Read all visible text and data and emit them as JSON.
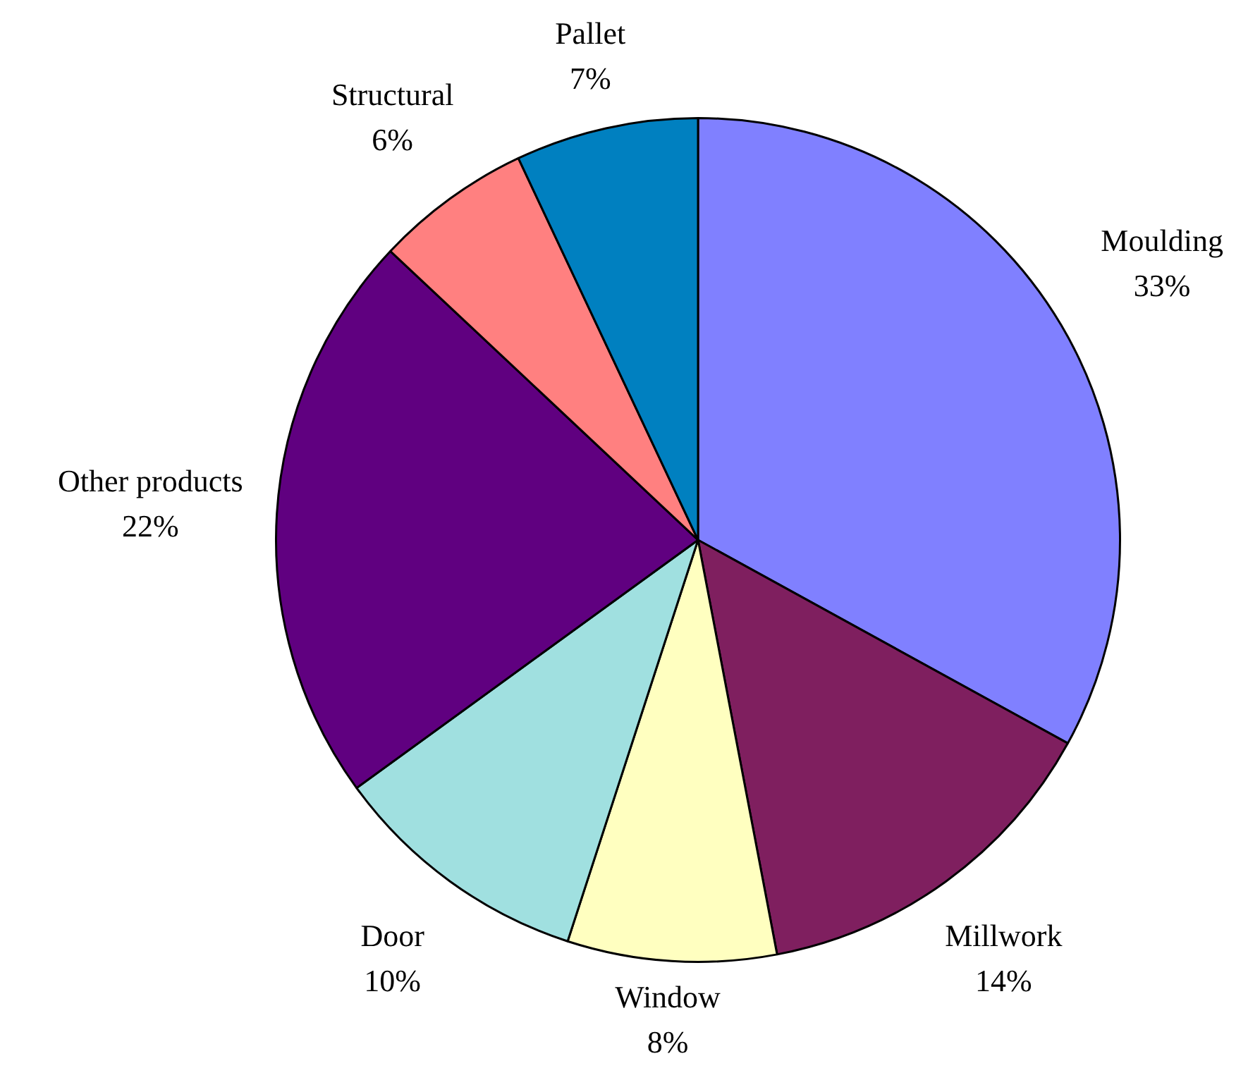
{
  "chart_data": {
    "type": "pie",
    "categories": [
      "Moulding",
      "Millwork",
      "Window",
      "Door",
      "Other products",
      "Structural",
      "Pallet"
    ],
    "values": [
      33,
      14,
      8,
      10,
      22,
      6,
      7
    ],
    "colors": [
      "#8080ff",
      "#7f1f5f",
      "#ffffc0",
      "#a0e0e0",
      "#600080",
      "#ff8080",
      "#0080c0"
    ],
    "value_labels": [
      "33%",
      "14%",
      "8%",
      "10%",
      "22%",
      "6%",
      "7%"
    ],
    "legend": false
  }
}
